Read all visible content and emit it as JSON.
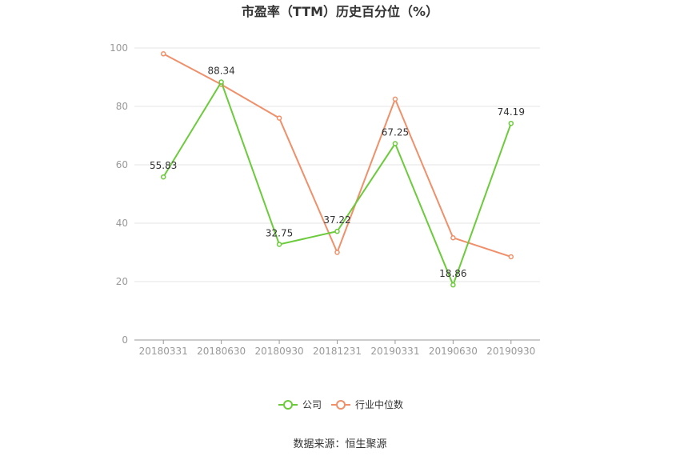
{
  "chart_data": {
    "type": "line",
    "title": "市盈率（TTM）历史百分位（%）",
    "categories": [
      "20180331",
      "20180630",
      "20180930",
      "20181231",
      "20190331",
      "20190630",
      "20190930"
    ],
    "ylim": [
      0,
      100
    ],
    "yticks": [
      0,
      20,
      40,
      60,
      80,
      100
    ],
    "grid": true,
    "legend_position": "bottom",
    "series": [
      {
        "name": "公司",
        "color": "#6bcb3b",
        "values": [
          55.83,
          88.34,
          32.75,
          37.22,
          67.25,
          18.86,
          74.19
        ],
        "labels": [
          "55.83",
          "88.34",
          "32.75",
          "37.22",
          "67.25",
          "18.86",
          "74.19"
        ]
      },
      {
        "name": "行业中位数",
        "color": "#f0906a",
        "values": [
          98.0,
          87.5,
          76.0,
          30.0,
          82.5,
          35.0,
          28.5
        ],
        "labels": []
      }
    ]
  },
  "source_text": "数据来源：恒生聚源"
}
